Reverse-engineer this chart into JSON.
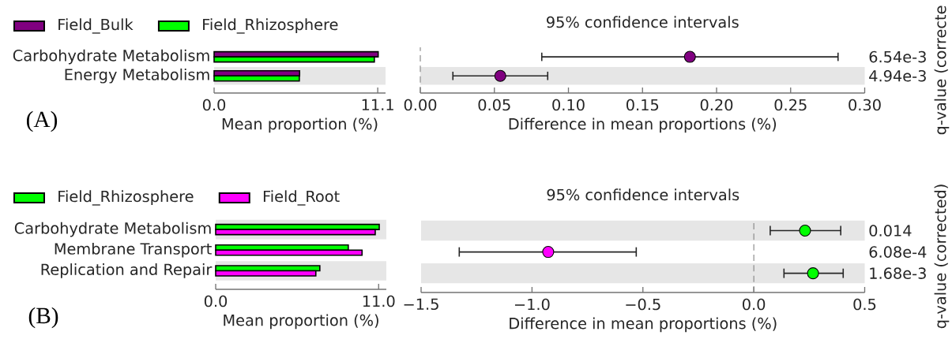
{
  "chart_data": [
    {
      "type": "bar",
      "orientation": "horizontal",
      "categories": [
        "Carbohydrate Metabolism",
        "Energy Metabolism"
      ],
      "series": [
        {
          "name": "Field_Bulk",
          "color": "#800080",
          "values": [
            11.13,
            5.8
          ]
        },
        {
          "name": "Field_Rhizosphere",
          "color": "#00ff00",
          "values": [
            10.87,
            5.78
          ]
        }
      ],
      "xlim": [
        0,
        11.63
      ],
      "xticks": [
        {
          "value": 0,
          "label": "0.0"
        },
        {
          "value": 11.1,
          "label": "11.1"
        }
      ],
      "xlabel": "Mean proportion (%)",
      "legend": "top left",
      "bands": [
        {
          "axis": "y",
          "from": "Energy Metabolism",
          "to": "Energy Metabolism",
          "color": "#e6e6e6"
        }
      ],
      "annotations": [
        "(A)"
      ]
    },
    {
      "type": "scatter",
      "orientation": "horizontal",
      "title": "95% confidence intervals",
      "categories": [
        "6.54e-3",
        "4.94e-3"
      ],
      "values": [
        0.182,
        0.054
      ],
      "colors": [
        "#800080",
        "#800080"
      ],
      "errors": [
        [
          0.082,
          0.282
        ],
        [
          0.022,
          0.086
        ]
      ],
      "marker": "circle",
      "xlim": [
        0,
        0.3
      ],
      "xticks": [
        {
          "value": 0,
          "label": "0.00"
        },
        {
          "value": 0.05,
          "label": "0.05"
        },
        {
          "value": 0.1,
          "label": "0.10"
        },
        {
          "value": 0.15,
          "label": "0.15"
        },
        {
          "value": 0.2,
          "label": "0.20"
        },
        {
          "value": 0.25,
          "label": "0.25"
        },
        {
          "value": 0.3,
          "label": "0.30"
        }
      ],
      "xlabel": "Difference in mean proportions (%)",
      "ylabel": "q-value (correcte",
      "ref_lines": [
        {
          "axis": "x",
          "value": 0,
          "color": "#808080",
          "line_style": "dashed"
        }
      ],
      "bands": [
        {
          "axis": "y",
          "from": "4.94e-3",
          "to": "4.94e-3",
          "color": "#e6e6e6"
        }
      ]
    },
    {
      "type": "bar",
      "orientation": "horizontal",
      "categories": [
        "Carbohydrate Metabolism",
        "Membrane Transport",
        "Replication and Repair"
      ],
      "series": [
        {
          "name": "Field_Rhizosphere",
          "color": "#00ff00",
          "values": [
            11.04,
            8.95,
            7.03
          ]
        },
        {
          "name": "Field_Root",
          "color": "#ff00ff",
          "values": [
            10.77,
            9.88,
            6.76
          ]
        }
      ],
      "xlim": [
        0,
        11.52
      ],
      "xticks": [
        {
          "value": 0,
          "label": "0.0"
        },
        {
          "value": 11.0,
          "label": "11.0"
        }
      ],
      "xlabel": "Mean proportion (%)",
      "legend": "top left",
      "bands": [
        {
          "axis": "y",
          "from": "Carbohydrate Metabolism",
          "to": "Carbohydrate Metabolism",
          "color": "#e6e6e6"
        },
        {
          "axis": "y",
          "from": "Replication and Repair",
          "to": "Replication and Repair",
          "color": "#e6e6e6"
        }
      ],
      "annotations": [
        "(B)"
      ]
    },
    {
      "type": "scatter",
      "orientation": "horizontal",
      "title": "95% confidence intervals",
      "categories": [
        "0.014",
        "6.08e-4",
        "1.68e-3"
      ],
      "values": [
        0.231,
        -0.927,
        0.267
      ],
      "colors": [
        "#00ff00",
        "#ff00ff",
        "#00ff00"
      ],
      "errors": [
        [
          0.074,
          0.392
        ],
        [
          -1.328,
          -0.53
        ],
        [
          0.136,
          0.403
        ]
      ],
      "marker": "circle",
      "xlim": [
        -1.5,
        0.5
      ],
      "xticks": [
        {
          "value": -1.5,
          "label": "−1.5"
        },
        {
          "value": -1.0,
          "label": "−1.0"
        },
        {
          "value": -0.5,
          "label": "−0.5"
        },
        {
          "value": 0,
          "label": "0.0"
        },
        {
          "value": 0.5,
          "label": "0.5"
        }
      ],
      "xlabel": "Difference in mean proportions (%)",
      "ylabel": "q-value (corrected)",
      "ref_lines": [
        {
          "axis": "x",
          "value": 0,
          "color": "#808080",
          "line_style": "dashed"
        }
      ],
      "bands": [
        {
          "axis": "y",
          "from": "0.014",
          "to": "0.014",
          "color": "#e6e6e6"
        },
        {
          "axis": "y",
          "from": "1.68e-3",
          "to": "1.68e-3",
          "color": "#e6e6e6"
        }
      ]
    }
  ]
}
